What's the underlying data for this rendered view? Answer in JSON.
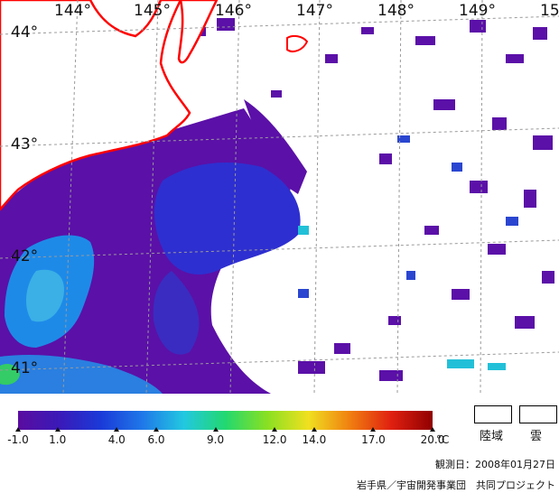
{
  "map": {
    "lon_labels": [
      "144°",
      "145°",
      "146°",
      "147°",
      "148°",
      "149°",
      "15"
    ],
    "lat_labels": [
      "44°",
      "43°",
      "42°",
      "41°"
    ],
    "coast_color": "#ff0000",
    "grid_color": "#9a9a9a"
  },
  "colorbar": {
    "min": -1.0,
    "max": 20.0,
    "ticks": [
      "-1.0",
      "1.0",
      "4.0",
      "6.0",
      "9.0",
      "12.0",
      "14.0",
      "17.0",
      "20.0"
    ],
    "tick_values": [
      -1.0,
      1.0,
      4.0,
      6.0,
      9.0,
      12.0,
      14.0,
      17.0,
      20.0
    ],
    "unit": "°C",
    "colors": [
      "#5a0ca0",
      "#3a1ab8",
      "#1a3ad8",
      "#1f78e8",
      "#22c8e0",
      "#22d870",
      "#88e022",
      "#f0e020",
      "#f08010",
      "#e02010",
      "#900000"
    ]
  },
  "legend": {
    "land": "陸域",
    "cloud": "雲"
  },
  "footer": {
    "date": "観測日：2008年01月27日",
    "credit": "岩手県／宇宙開発事業団　共同プロジェクト"
  }
}
